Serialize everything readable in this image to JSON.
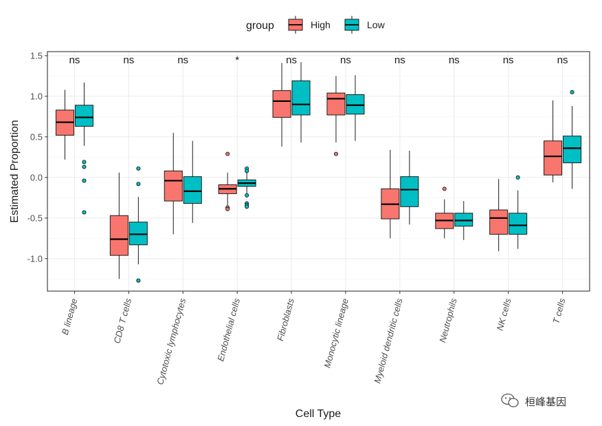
{
  "chart_data": {
    "type": "boxplot",
    "title": "",
    "xlabel": "Cell Type",
    "ylabel": "Estimated Proportion",
    "ylim": [
      -1.4,
      1.55
    ],
    "yticks": [
      -1.0,
      -0.5,
      0.0,
      0.5,
      1.0,
      1.5
    ],
    "ytick_labels": [
      "-1.0",
      "-0.5",
      "0.0",
      "0.5",
      "1.0",
      "1.5"
    ],
    "legend": {
      "title": "group",
      "position": "top",
      "entries": [
        {
          "name": "High",
          "color": "#F8766D"
        },
        {
          "name": "Low",
          "color": "#00BFC4"
        }
      ]
    },
    "categories": [
      "B lineage",
      "CD8 T cells",
      "Cytotoxic lymphocytes",
      "Endothelial cells",
      "Fibroblasts",
      "Monocytic lineage",
      "Myeloid dendritic cells",
      "Neutrophils",
      "NK cells",
      "T cells"
    ],
    "significance": [
      "ns",
      "ns",
      "ns",
      "*",
      "ns",
      "ns",
      "ns",
      "ns",
      "ns",
      "ns"
    ],
    "series": [
      {
        "name": "High",
        "color": "#F8766D",
        "boxes": [
          {
            "min": 0.22,
            "q1": 0.52,
            "median": 0.68,
            "q3": 0.83,
            "max": 1.08,
            "outliers": []
          },
          {
            "min": -1.25,
            "q1": -0.96,
            "median": -0.76,
            "q3": -0.47,
            "max": 0.06,
            "outliers": []
          },
          {
            "min": -0.7,
            "q1": -0.29,
            "median": -0.04,
            "q3": 0.08,
            "max": 0.55,
            "outliers": []
          },
          {
            "min": -0.37,
            "q1": -0.2,
            "median": -0.14,
            "q3": -0.09,
            "max": 0.06,
            "outliers": [
              0.29,
              -0.37,
              -0.39
            ]
          },
          {
            "min": 0.38,
            "q1": 0.74,
            "median": 0.94,
            "q3": 1.07,
            "max": 1.41,
            "outliers": []
          },
          {
            "min": 0.43,
            "q1": 0.77,
            "median": 0.97,
            "q3": 1.04,
            "max": 1.25,
            "outliers": [
              0.29
            ]
          },
          {
            "min": -0.75,
            "q1": -0.51,
            "median": -0.33,
            "q3": -0.14,
            "max": 0.34,
            "outliers": []
          },
          {
            "min": -0.75,
            "q1": -0.63,
            "median": -0.53,
            "q3": -0.44,
            "max": -0.27,
            "outliers": [
              -0.14
            ]
          },
          {
            "min": -0.91,
            "q1": -0.7,
            "median": -0.5,
            "q3": -0.4,
            "max": -0.02,
            "outliers": []
          },
          {
            "min": -0.06,
            "q1": 0.03,
            "median": 0.26,
            "q3": 0.45,
            "max": 0.95,
            "outliers": []
          }
        ]
      },
      {
        "name": "Low",
        "color": "#00BFC4",
        "boxes": [
          {
            "min": 0.39,
            "q1": 0.63,
            "median": 0.74,
            "q3": 0.89,
            "max": 1.17,
            "outliers": [
              0.19,
              0.13,
              -0.04,
              -0.43
            ]
          },
          {
            "min": -1.07,
            "q1": -0.83,
            "median": -0.7,
            "q3": -0.55,
            "max": -0.24,
            "outliers": [
              0.11,
              -0.08,
              -1.27
            ]
          },
          {
            "min": -0.56,
            "q1": -0.32,
            "median": -0.17,
            "q3": 0.01,
            "max": 0.45,
            "outliers": []
          },
          {
            "min": -0.2,
            "q1": -0.11,
            "median": -0.07,
            "q3": -0.03,
            "max": 0.1,
            "outliers": [
              0.11,
              0.08,
              -0.22,
              -0.32,
              -0.34,
              -0.36
            ]
          },
          {
            "min": 0.43,
            "q1": 0.77,
            "median": 0.9,
            "q3": 1.19,
            "max": 1.42,
            "outliers": []
          },
          {
            "min": 0.45,
            "q1": 0.78,
            "median": 0.89,
            "q3": 1.02,
            "max": 1.26,
            "outliers": []
          },
          {
            "min": -0.58,
            "q1": -0.36,
            "median": -0.15,
            "q3": 0.01,
            "max": 0.33,
            "outliers": []
          },
          {
            "min": -0.77,
            "q1": -0.6,
            "median": -0.53,
            "q3": -0.44,
            "max": -0.29,
            "outliers": []
          },
          {
            "min": -0.88,
            "q1": -0.7,
            "median": -0.59,
            "q3": -0.44,
            "max": -0.16,
            "outliers": [
              0.0
            ]
          },
          {
            "min": -0.14,
            "q1": 0.18,
            "median": 0.36,
            "q3": 0.51,
            "max": 0.88,
            "outliers": [
              1.05
            ]
          }
        ]
      }
    ]
  },
  "watermark": {
    "text": "桓峰基因",
    "icon": "wechat-icon"
  }
}
